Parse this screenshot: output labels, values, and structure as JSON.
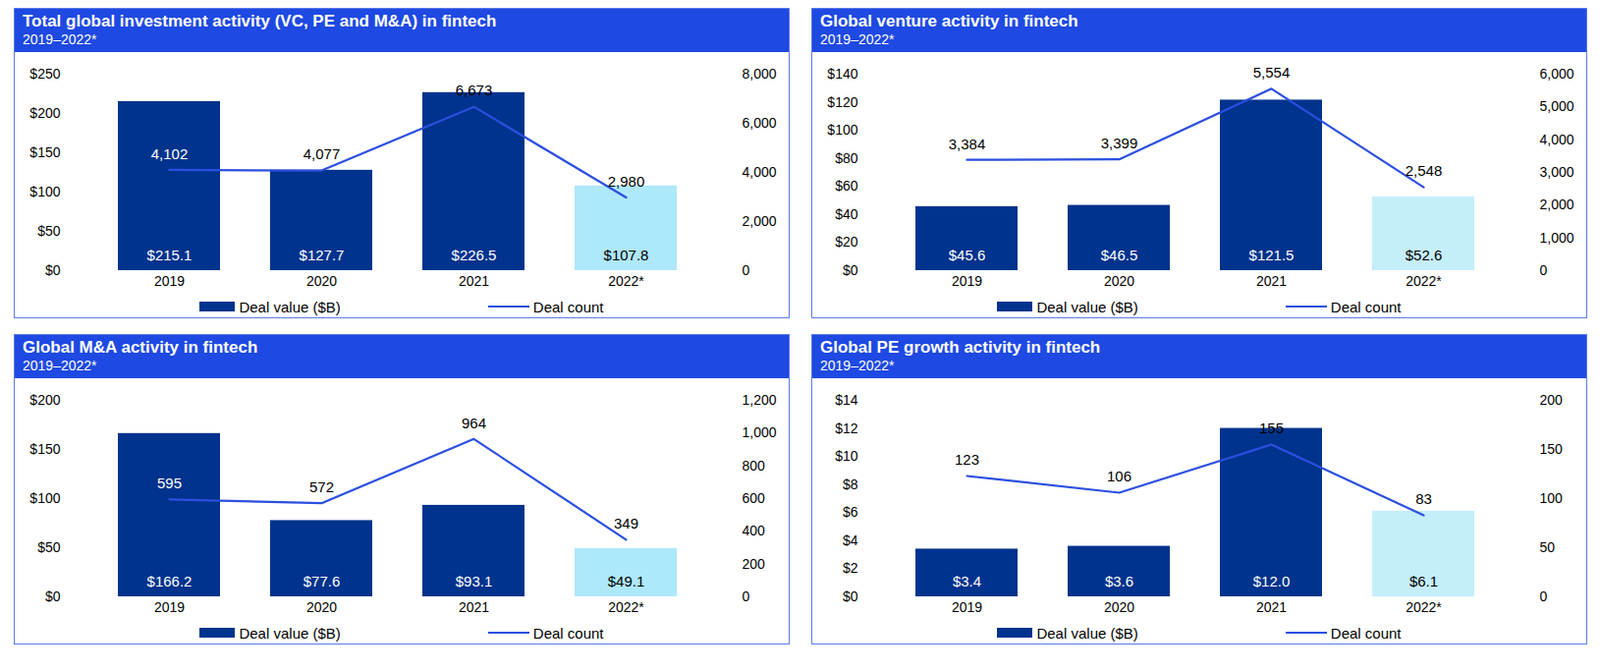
{
  "chart_data": [
    {
      "type": "bar",
      "title": "Total global investment activity (VC, PE and M&A) in fintech",
      "subtitle": "2019–2022*",
      "categories": [
        "2019",
        "2020",
        "2021",
        "2022*"
      ],
      "series": [
        {
          "name": "Deal value ($B)",
          "type": "bar",
          "color": "#00338d",
          "colors": [
            "#00338d",
            "#00338d",
            "#00338d",
            "#aee8fb"
          ],
          "values": [
            215.1,
            127.7,
            226.5,
            107.8
          ],
          "value_labels": [
            "$215.1",
            "$127.7",
            "$226.5",
            "$107.8"
          ]
        },
        {
          "name": "Deal count",
          "type": "line",
          "axis": "y2",
          "color": "#2b4fe0",
          "values": [
            4102,
            4077,
            6673,
            2980
          ],
          "value_labels": [
            "4,102",
            "4,077",
            "6,673",
            "2,980"
          ]
        }
      ],
      "ylim": [
        0,
        250
      ],
      "yticks": [
        {
          "value": 0,
          "label": "$0"
        },
        {
          "value": 50,
          "label": "$50"
        },
        {
          "value": 100,
          "label": "$100"
        },
        {
          "value": 150,
          "label": "$150"
        },
        {
          "value": 200,
          "label": "$200"
        },
        {
          "value": 250,
          "label": "$250"
        }
      ],
      "y2lim": [
        0,
        8000
      ],
      "y2ticks": [
        0,
        {
          "value": 2000,
          "label": "2,000"
        },
        {
          "value": 4000,
          "label": "4,000"
        },
        {
          "value": 6000,
          "label": "6,000"
        },
        {
          "value": 8000,
          "label": "8,000"
        }
      ],
      "data_labels": true,
      "grid": false
    },
    {
      "type": "bar",
      "title": "Global venture activity in fintech",
      "subtitle": "2019–2022*",
      "categories": [
        "2019",
        "2020",
        "2021",
        "2022*"
      ],
      "series": [
        {
          "name": "Deal value ($B)",
          "type": "bar",
          "color": "#00338d",
          "colors": [
            "#00338d",
            "#00338d",
            "#00338d",
            "#c5eefb"
          ],
          "values": [
            45.6,
            46.5,
            121.5,
            52.6
          ],
          "value_labels": [
            "$45.6",
            "$46.5",
            "$121.5",
            "$52.6"
          ]
        },
        {
          "name": "Deal count",
          "type": "line",
          "axis": "y2",
          "color": "#2b4fe0",
          "values": [
            3384,
            3399,
            5554,
            2548
          ],
          "value_labels": [
            "3,384",
            "3,399",
            "5,554",
            "2,548"
          ]
        }
      ],
      "ylim": [
        0,
        140
      ],
      "yticks": [
        {
          "value": 0,
          "label": "$0"
        },
        {
          "value": 20,
          "label": "$20"
        },
        {
          "value": 40,
          "label": "$40"
        },
        {
          "value": 60,
          "label": "$60"
        },
        {
          "value": 80,
          "label": "$80"
        },
        {
          "value": 100,
          "label": "$100"
        },
        {
          "value": 120,
          "label": "$120"
        },
        {
          "value": 140,
          "label": "$140"
        }
      ],
      "y2lim": [
        0,
        6000
      ],
      "y2ticks": [
        0,
        {
          "value": 1000,
          "label": "1,000"
        },
        {
          "value": 2000,
          "label": "2,000"
        },
        {
          "value": 3000,
          "label": "3,000"
        },
        {
          "value": 4000,
          "label": "4,000"
        },
        {
          "value": 5000,
          "label": "5,000"
        },
        {
          "value": 6000,
          "label": "6,000"
        }
      ],
      "data_labels": true,
      "grid": false
    },
    {
      "type": "bar",
      "title": "Global M&A activity in fintech",
      "subtitle": "2019–2022*",
      "categories": [
        "2019",
        "2020",
        "2021",
        "2022*"
      ],
      "series": [
        {
          "name": "Deal value ($B)",
          "type": "bar",
          "color": "#00338d",
          "colors": [
            "#00338d",
            "#00338d",
            "#00338d",
            "#aee8fb"
          ],
          "values": [
            166.2,
            77.6,
            93.1,
            49.1
          ],
          "value_labels": [
            "$166.2",
            "$77.6",
            "$93.1",
            "$49.1"
          ]
        },
        {
          "name": "Deal count",
          "type": "line",
          "axis": "y2",
          "color": "#2b4fe0",
          "values": [
            595,
            572,
            964,
            349
          ]
        }
      ],
      "ylim": [
        0,
        200
      ],
      "yticks": [
        {
          "value": 0,
          "label": "$0"
        },
        {
          "value": 50,
          "label": "$50"
        },
        {
          "value": 100,
          "label": "$100"
        },
        {
          "value": 150,
          "label": "$150"
        },
        {
          "value": 200,
          "label": "$200"
        }
      ],
      "y2lim": [
        0,
        1200
      ],
      "y2ticks": [
        0,
        200,
        400,
        600,
        800,
        {
          "value": 1000,
          "label": "1,000"
        },
        {
          "value": 1200,
          "label": "1,200"
        }
      ],
      "data_labels": true,
      "grid": false
    },
    {
      "type": "bar",
      "title": "Global PE growth activity in fintech",
      "subtitle": "2019–2022*",
      "categories": [
        "2019",
        "2020",
        "2021",
        "2022*"
      ],
      "series": [
        {
          "name": "Deal value ($B)",
          "type": "bar",
          "color": "#00338d",
          "colors": [
            "#00338d",
            "#00338d",
            "#00338d",
            "#c5eefb"
          ],
          "values": [
            3.4,
            3.6,
            12.0,
            6.1
          ],
          "value_labels": [
            "$3.4",
            "$3.6",
            "$12.0",
            "$6.1"
          ]
        },
        {
          "name": "Deal count",
          "type": "line",
          "axis": "y2",
          "color": "#2b4fe0",
          "values": [
            123,
            106,
            155,
            83
          ]
        }
      ],
      "ylim": [
        0,
        14
      ],
      "yticks": [
        {
          "value": 0,
          "label": "$0"
        },
        {
          "value": 2,
          "label": "$2"
        },
        {
          "value": 4,
          "label": "$4"
        },
        {
          "value": 6,
          "label": "$6"
        },
        {
          "value": 8,
          "label": "$8"
        },
        {
          "value": 10,
          "label": "$10"
        },
        {
          "value": 12,
          "label": "$12"
        },
        {
          "value": 14,
          "label": "$14"
        }
      ],
      "y2lim": [
        0,
        200
      ],
      "y2ticks": [
        0,
        50,
        100,
        150,
        200
      ],
      "data_labels": true,
      "grid": false
    }
  ]
}
